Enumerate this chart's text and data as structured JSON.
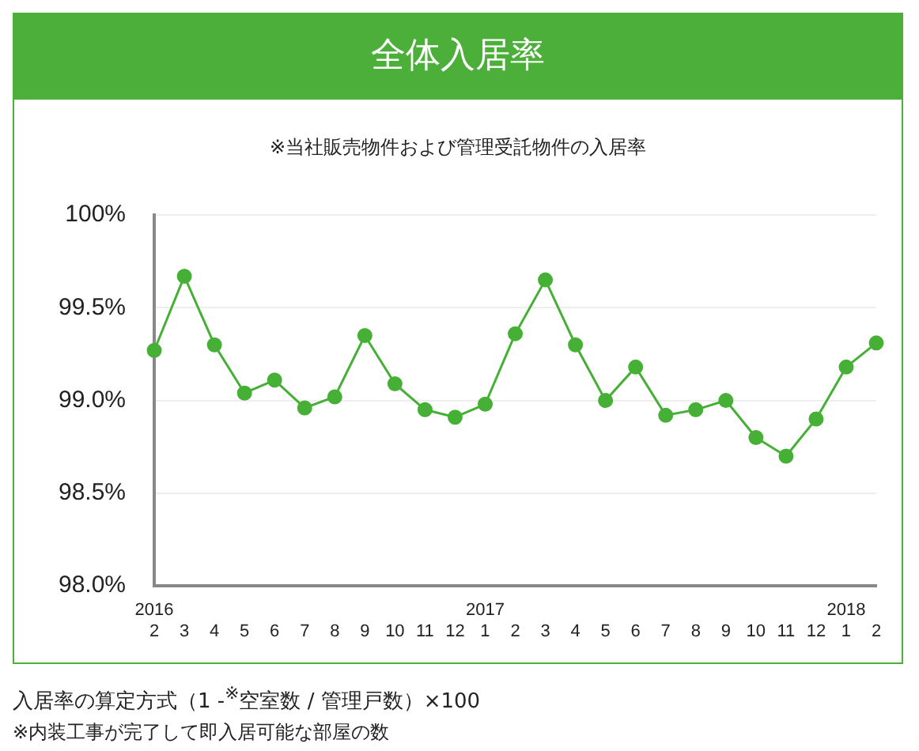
{
  "chart_data": {
    "type": "line",
    "title": "全体入居率",
    "subtitle": "※当社販売物件および管理受託物件の入居率",
    "categories": [
      "2016\n2",
      "3",
      "4",
      "5",
      "6",
      "7",
      "8",
      "9",
      "10",
      "11",
      "12",
      "2017\n1",
      "2",
      "3",
      "4",
      "5",
      "6",
      "7",
      "8",
      "9",
      "10",
      "11",
      "12",
      "2018\n1",
      "2"
    ],
    "series": [
      {
        "color": "#45b035",
        "values": [
          99.27,
          99.67,
          99.3,
          99.04,
          99.11,
          98.96,
          99.02,
          99.35,
          99.09,
          98.95,
          98.91,
          98.98,
          99.36,
          99.65,
          99.3,
          99.0,
          99.18,
          98.92,
          98.95,
          99.0,
          98.8,
          98.7,
          98.9,
          99.18,
          99.31
        ]
      }
    ],
    "ylim": [
      98,
      100
    ],
    "yticks": [
      {
        "value": 98,
        "label": "98.0%"
      },
      {
        "value": 98.5,
        "label": "98.5%"
      },
      {
        "value": 99,
        "label": "99.0%"
      },
      {
        "value": 99.5,
        "label": "99.5%"
      },
      {
        "value": 100,
        "label": "100%"
      }
    ],
    "grid": "y",
    "legend": false,
    "marker": "circle",
    "line_style": "solid",
    "annotations": [
      "入居率の算定方式（1 -$^{※}$空室数 / 管理戸数）×100",
      "※内装工事が完了して即入居可能な部屋の数"
    ]
  }
}
